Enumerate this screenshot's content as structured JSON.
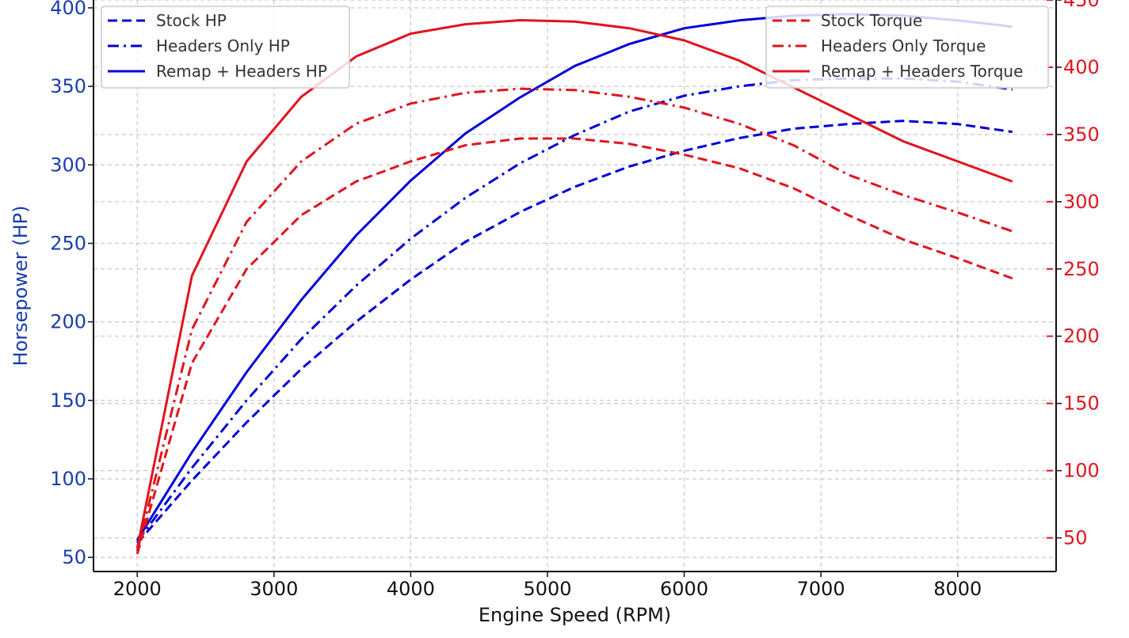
{
  "chart_data": {
    "type": "line",
    "xlabel": "Engine Speed (RPM)",
    "ylabel": "Horsepower (HP)",
    "y2label": "",
    "xlim": [
      1680,
      8720
    ],
    "ylim": [
      41,
      405
    ],
    "y2lim": [
      25,
      450
    ],
    "x_ticks": [
      2000,
      3000,
      4000,
      5000,
      6000,
      7000,
      8000
    ],
    "y_ticks": [
      50,
      100,
      150,
      200,
      250,
      300,
      350,
      400
    ],
    "y2_ticks": [
      50,
      100,
      150,
      200,
      250,
      300,
      350,
      400,
      450
    ],
    "grid": true,
    "x": [
      2000,
      2400,
      2800,
      3200,
      3600,
      4000,
      4400,
      4800,
      5200,
      5600,
      6000,
      6400,
      6800,
      7200,
      7600,
      8000,
      8400
    ],
    "series": [
      {
        "name": "Stock HP",
        "axis": "left",
        "style": "dashed",
        "color": "#0000d8",
        "values": [
          59,
          99,
          136,
          170,
          200,
          227,
          251,
          270,
          286,
          299,
          309,
          317,
          323,
          326,
          328,
          326,
          321
        ]
      },
      {
        "name": "Headers Only HP",
        "axis": "left",
        "style": "dashdot",
        "color": "#0000d8",
        "values": [
          60,
          107,
          150,
          189,
          223,
          253,
          279,
          301,
          319,
          334,
          344,
          350,
          354,
          355,
          355,
          353,
          348
        ]
      },
      {
        "name": "Remap + Headers HP",
        "axis": "left",
        "style": "solid",
        "color": "#0000d8",
        "values": [
          61,
          117,
          168,
          214,
          255,
          290,
          320,
          343,
          363,
          377,
          387,
          392,
          395,
          396,
          395,
          392,
          388
        ]
      },
      {
        "name": "Stock Torque",
        "axis": "right",
        "style": "dashed",
        "color": "#e0141e",
        "values": [
          38,
          180,
          250,
          290,
          315,
          330,
          342,
          347,
          347,
          343,
          335,
          325,
          310,
          290,
          272,
          258,
          243
        ]
      },
      {
        "name": "Headers Only Torque",
        "axis": "right",
        "style": "dashdot",
        "color": "#e0141e",
        "values": [
          40,
          205,
          285,
          330,
          358,
          373,
          381,
          384,
          383,
          378,
          370,
          358,
          342,
          320,
          305,
          292,
          278
        ]
      },
      {
        "name": "Remap + Headers Torque",
        "axis": "right",
        "style": "solid",
        "color": "#e0141e",
        "values": [
          42,
          245,
          330,
          378,
          408,
          425,
          432,
          435,
          434,
          429,
          420,
          405,
          385,
          365,
          345,
          330,
          315
        ]
      }
    ],
    "legends": [
      {
        "placement": "upper-left",
        "items": [
          "Stock HP",
          "Headers Only HP",
          "Remap + Headers HP"
        ]
      },
      {
        "placement": "upper-right",
        "items": [
          "Stock Torque",
          "Headers Only Torque",
          "Remap + Headers Torque"
        ]
      }
    ],
    "colors": {
      "hp": "#0000d8",
      "torque": "#e0141e",
      "hp_ticks": "#1a3cb0",
      "torque_ticks": "#e0141e"
    }
  }
}
